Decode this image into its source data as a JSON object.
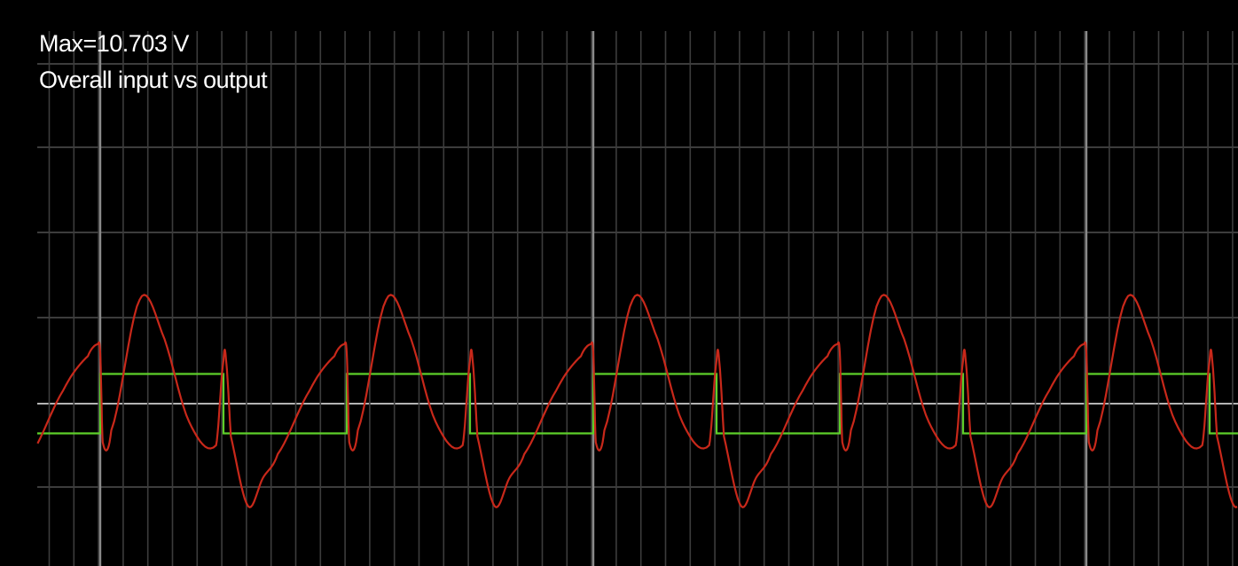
{
  "scope": {
    "max_text": "Max=10.703 V",
    "title": "Overall input vs output"
  },
  "colors": {
    "background": "#000000",
    "grid_minor": "#3c3c3c",
    "grid_major": "#8a8a8a",
    "zero_line": "#b4b4b4",
    "input": "#5ecf2a",
    "output": "#c8281a",
    "text": "#ffffff"
  },
  "chart_data": {
    "type": "line",
    "title": "Overall input vs output",
    "max_label": "Max=10.703 V",
    "grid": true,
    "ylim": [
      -10.703,
      10.703
    ],
    "xlim": [
      0,
      4.7
    ],
    "period": 1,
    "duty": 0.5,
    "series": [
      {
        "role": "input",
        "color": "#5ecf2a",
        "shape": "square",
        "high": 2.0,
        "low": -2.0
      },
      {
        "role": "output",
        "color": "#c8281a",
        "shape": "periodic",
        "phase": [
          0,
          0.01,
          0.045,
          0.16,
          0.25,
          0.36,
          0.47,
          0.5,
          0.51,
          0.53,
          0.6,
          0.66,
          0.72,
          0.85,
          0.95,
          0.99,
          1.0
        ],
        "values": [
          3.4,
          -2.6,
          -1.8,
          7.0,
          4.8,
          -1.2,
          -2.8,
          2.9,
          3.0,
          -2.2,
          -6.9,
          -5.0,
          -3.4,
          0.9,
          3.2,
          4.0,
          3.4
        ]
      }
    ]
  }
}
